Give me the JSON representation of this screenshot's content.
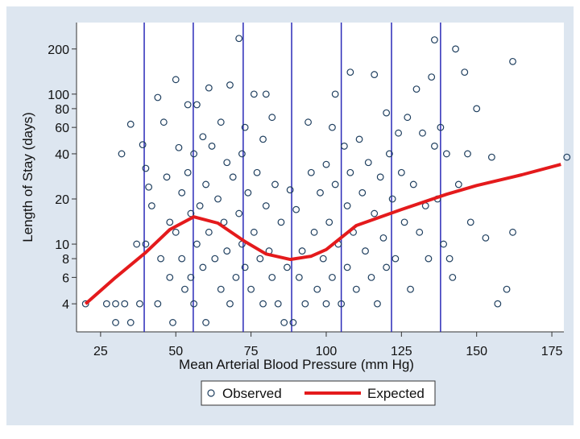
{
  "chart_data": {
    "type": "scatter",
    "x_label": "Mean Arterial Blood Pressure  (mm Hg)",
    "y_label": "Length of Stay (days)",
    "xlim": [
      17,
      179
    ],
    "ylim": [
      2.6,
      300
    ],
    "xticks": [
      25,
      50,
      75,
      100,
      125,
      150,
      175
    ],
    "yticks": [
      4,
      6,
      8,
      10,
      20,
      40,
      60,
      80,
      100,
      200
    ],
    "log_y": true,
    "legend": "bottom",
    "vlines": [
      39.5,
      55.8,
      72.4,
      88.5,
      105,
      121.7,
      138
    ],
    "vline_color": "#2a2ab8",
    "series": [
      {
        "name": "Observed",
        "mode": "markers",
        "color": "#1f3f5f",
        "x": [
          20,
          27,
          30,
          30,
          32,
          33,
          35,
          35,
          37,
          38,
          39,
          40,
          40,
          41,
          42,
          44,
          44,
          45,
          46,
          47,
          48,
          48,
          49,
          50,
          50,
          51,
          52,
          52,
          53,
          54,
          54,
          55,
          55,
          56,
          56,
          57,
          57,
          58,
          59,
          59,
          60,
          60,
          61,
          61,
          62,
          63,
          64,
          65,
          65,
          66,
          67,
          67,
          68,
          68,
          69,
          70,
          71,
          71,
          72,
          72,
          73,
          73,
          74,
          75,
          76,
          76,
          77,
          78,
          79,
          79,
          80,
          80,
          81,
          82,
          82,
          83,
          84,
          85,
          86,
          87,
          88,
          89,
          90,
          91,
          92,
          93,
          94,
          95,
          96,
          97,
          98,
          99,
          100,
          100,
          101,
          102,
          102,
          103,
          103,
          104,
          105,
          106,
          107,
          107,
          108,
          108,
          109,
          110,
          111,
          112,
          113,
          114,
          115,
          116,
          116,
          117,
          118,
          119,
          120,
          120,
          121,
          122,
          123,
          124,
          125,
          126,
          127,
          128,
          129,
          130,
          131,
          132,
          133,
          134,
          135,
          136,
          136,
          137,
          138,
          139,
          140,
          141,
          142,
          143,
          144,
          146,
          147,
          148,
          150,
          153,
          155,
          157,
          160,
          162,
          162,
          180
        ],
        "values": [
          4,
          4,
          4,
          3,
          40,
          4,
          3,
          63,
          10,
          4,
          46,
          32,
          10,
          24,
          18,
          95,
          4,
          8,
          65,
          28,
          14,
          6,
          3,
          125,
          12,
          44,
          22,
          8,
          5,
          85,
          30,
          6,
          16,
          40,
          4,
          85,
          10,
          18,
          52,
          7,
          25,
          3,
          110,
          12,
          45,
          8,
          20,
          65,
          5,
          14,
          35,
          9,
          115,
          4,
          28,
          6,
          235,
          16,
          40,
          10,
          60,
          7,
          22,
          5,
          100,
          12,
          30,
          8,
          50,
          4,
          100,
          18,
          9,
          70,
          6,
          25,
          4,
          14,
          3,
          7,
          23,
          3,
          17,
          6,
          9,
          4,
          65,
          30,
          12,
          5,
          22,
          8,
          34,
          4,
          14,
          60,
          6,
          100,
          25,
          10,
          4,
          45,
          18,
          7,
          140,
          30,
          12,
          5,
          50,
          22,
          9,
          35,
          6,
          135,
          16,
          4,
          28,
          11,
          75,
          7,
          40,
          20,
          8,
          55,
          30,
          14,
          70,
          5,
          25,
          108,
          12,
          55,
          18,
          8,
          130,
          230,
          45,
          20,
          60,
          10,
          40,
          8,
          6,
          200,
          25,
          140,
          40,
          14,
          80,
          11,
          38,
          4,
          5,
          165,
          12,
          38
        ]
      },
      {
        "name": "Expected",
        "mode": "line",
        "color": "#e41a1c",
        "x": [
          20,
          30,
          40,
          48,
          56,
          64,
          73,
          80,
          88,
          95,
          100,
          110,
          125,
          140,
          150,
          165,
          178
        ],
        "values": [
          4,
          6,
          8.8,
          12.5,
          15.2,
          13.8,
          10.4,
          8.6,
          7.9,
          8.3,
          9.2,
          13.3,
          17,
          21.5,
          24.6,
          29,
          34
        ]
      }
    ]
  }
}
